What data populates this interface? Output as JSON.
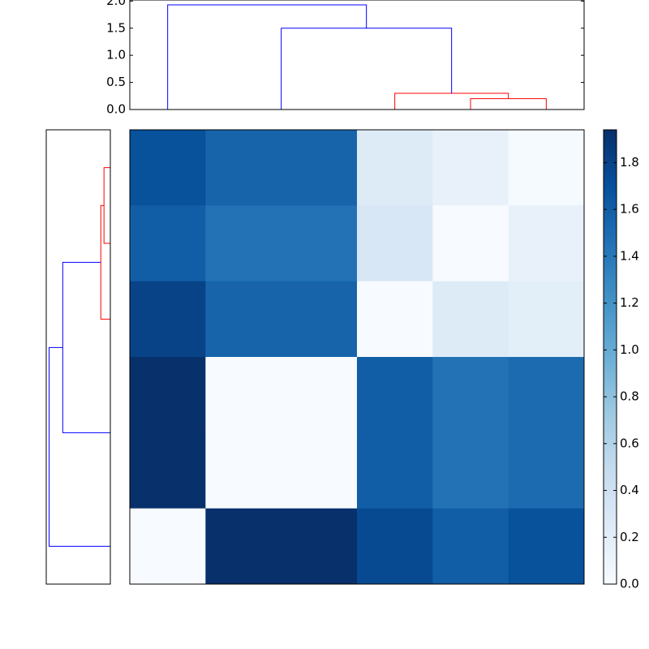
{
  "chart_data": [
    {
      "type": "dendrogram",
      "orientation": "top",
      "xlim": [
        0,
        6
      ],
      "ylim": [
        0,
        2.02
      ],
      "yticks": [
        {
          "value": 0,
          "label": "0.0"
        },
        0.5,
        {
          "value": 1,
          "label": "1.0"
        },
        1.5,
        {
          "value": 2,
          "label": "2.0"
        }
      ],
      "links": [
        {
          "leaves": [
            1.5,
            1.5,
            2.5,
            2.5
          ],
          "dist": [
            0,
            0,
            0,
            0
          ],
          "color": "#008000"
        },
        {
          "leaves": [
            4.5,
            4.5,
            5.5,
            5.5
          ],
          "dist": [
            0,
            0.2,
            0.2,
            0
          ],
          "color": "#ff0000"
        },
        {
          "leaves": [
            3.5,
            3.5,
            5,
            5
          ],
          "dist": [
            0,
            0.3,
            0.3,
            0.2
          ],
          "color": "#ff0000"
        },
        {
          "leaves": [
            2,
            2,
            4.25,
            4.25
          ],
          "dist": [
            0,
            1.5,
            1.5,
            0.3
          ],
          "color": "#0000ff"
        },
        {
          "leaves": [
            0.5,
            0.5,
            3.125,
            3.125
          ],
          "dist": [
            0,
            1.93,
            1.93,
            1.5
          ],
          "color": "#0000ff"
        }
      ]
    },
    {
      "type": "dendrogram",
      "orientation": "left",
      "xlim": [
        2.02,
        0
      ],
      "ylim": [
        6,
        0
      ],
      "links": [
        {
          "leaves": [
            0.5,
            0.5,
            1.5,
            1.5
          ],
          "dist": [
            0,
            0.2,
            0.2,
            0
          ],
          "color": "#ff0000"
        },
        {
          "leaves": [
            1,
            1,
            2.5,
            2.5
          ],
          "dist": [
            0.2,
            0.3,
            0.3,
            0
          ],
          "color": "#ff0000"
        },
        {
          "leaves": [
            3.5,
            3.5,
            4.5,
            4.5
          ],
          "dist": [
            0,
            0,
            0,
            0
          ],
          "color": "#008000"
        },
        {
          "leaves": [
            1.75,
            1.75,
            4,
            4
          ],
          "dist": [
            0.3,
            1.5,
            1.5,
            0
          ],
          "color": "#0000ff"
        },
        {
          "leaves": [
            2.875,
            2.875,
            5.5,
            5.5
          ],
          "dist": [
            1.5,
            1.93,
            1.93,
            0
          ],
          "color": "#0000ff"
        }
      ]
    },
    {
      "type": "heatmap",
      "values": [
        [
          1.7,
          1.55,
          1.55,
          0.25,
          0.15,
          0.02
        ],
        [
          1.6,
          1.45,
          1.45,
          0.3,
          0.0,
          0.15
        ],
        [
          1.8,
          1.55,
          1.55,
          0.0,
          0.25,
          0.2
        ],
        [
          1.94,
          0.0,
          0.0,
          1.6,
          1.45,
          1.5
        ],
        [
          1.94,
          0.0,
          0.0,
          1.6,
          1.45,
          1.5
        ],
        [
          0.0,
          1.94,
          1.94,
          1.75,
          1.6,
          1.7
        ]
      ],
      "vlim": [
        0,
        1.94
      ],
      "colors": [
        "#f7fbff",
        "#deebf7",
        "#c6dbef",
        "#9ecae1",
        "#6baed6",
        "#4292c6",
        "#2171b5",
        "#08519c",
        "#08306b"
      ],
      "colorbar_ticks": [
        {
          "value": 0,
          "label": "0.0"
        },
        0.2,
        0.4,
        0.6,
        0.8,
        {
          "value": 1,
          "label": "1.0"
        },
        1.2,
        1.4,
        1.6,
        1.8
      ]
    }
  ]
}
